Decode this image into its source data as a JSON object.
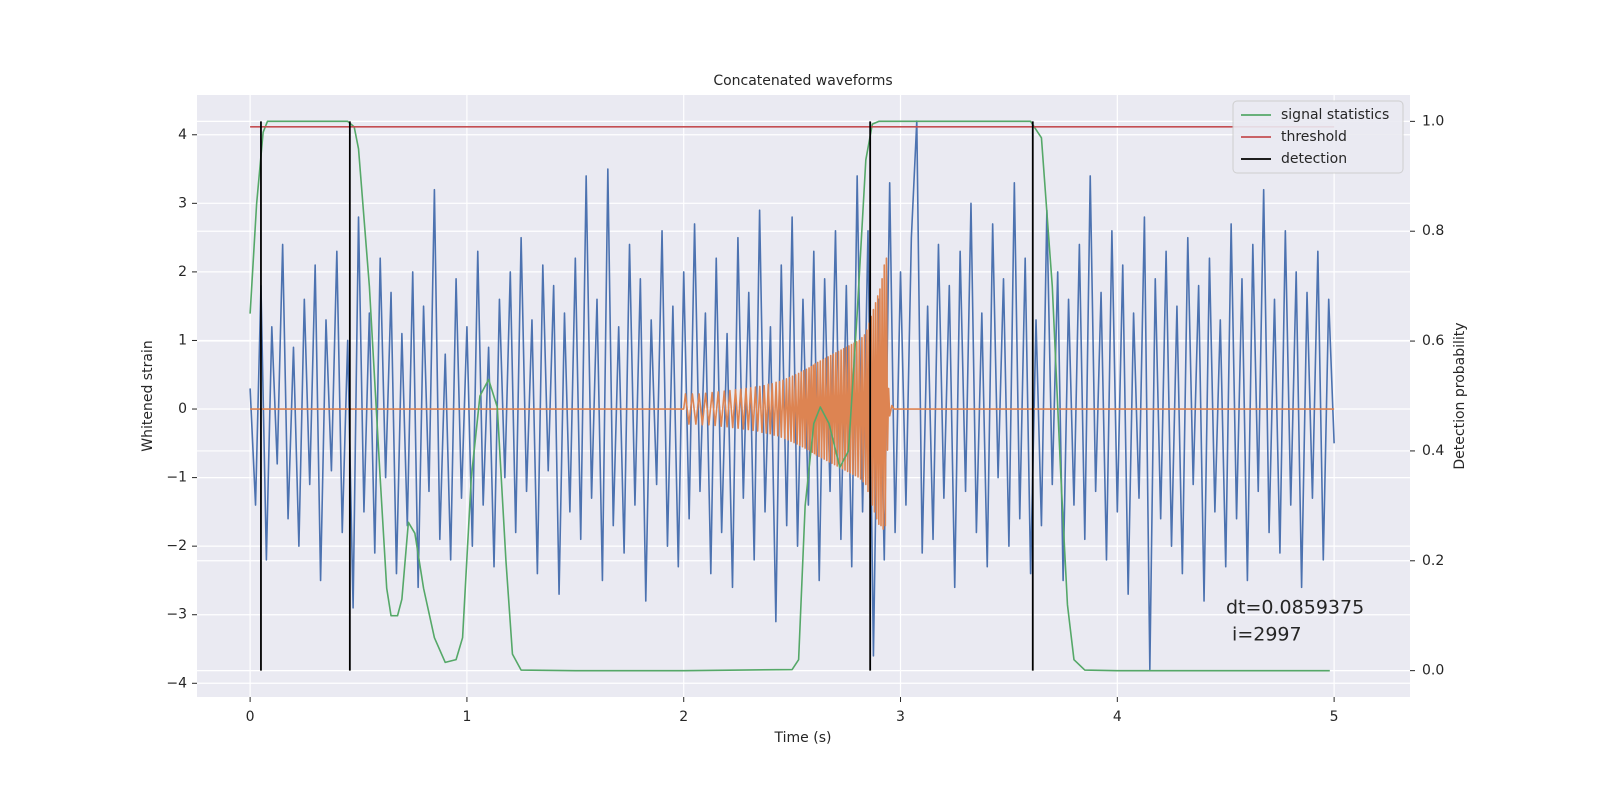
{
  "chart_data": {
    "type": "line",
    "title": "Concatenated waveforms",
    "xlabel": "Time (s)",
    "ylabel": "Whitened strain",
    "y2label": "Detection probability",
    "xlim": [
      -0.245,
      5.35
    ],
    "ylim": [
      -4.2,
      4.58
    ],
    "y2lim": [
      -0.048,
      1.048
    ],
    "xticks": [
      0,
      1,
      2,
      3,
      4,
      5
    ],
    "yticks": [
      {
        "value": -4,
        "label": "−4"
      },
      {
        "value": -3,
        "label": "−3"
      },
      {
        "value": -2,
        "label": "−2"
      },
      {
        "value": -1,
        "label": "−1"
      },
      0,
      1,
      2,
      3,
      4
    ],
    "y2ticks": [
      {
        "value": 0,
        "label": "0.0"
      },
      0.2,
      0.4,
      0.6,
      0.8,
      {
        "value": 1,
        "label": "1.0"
      }
    ],
    "grid": true,
    "legend": "upper right",
    "series": [
      {
        "color": "#4c72b0",
        "x": [
          0,
          0.025,
          0.05,
          0.075,
          0.1,
          0.125,
          0.15,
          0.175,
          0.2,
          0.225,
          0.25,
          0.275,
          0.3,
          0.325,
          0.35,
          0.375,
          0.4,
          0.425,
          0.45,
          0.475,
          0.5,
          0.525,
          0.55,
          0.575,
          0.6,
          0.625,
          0.65,
          0.675,
          0.7,
          0.725,
          0.75,
          0.775,
          0.8,
          0.825,
          0.85,
          0.875,
          0.9,
          0.925,
          0.95,
          0.975,
          1,
          1.025,
          1.05,
          1.075,
          1.1,
          1.125,
          1.15,
          1.175,
          1.2,
          1.225,
          1.25,
          1.275,
          1.3,
          1.325,
          1.35,
          1.375,
          1.4,
          1.425,
          1.45,
          1.475,
          1.5,
          1.525,
          1.55,
          1.575,
          1.6,
          1.625,
          1.65,
          1.675,
          1.7,
          1.725,
          1.75,
          1.775,
          1.8,
          1.825,
          1.85,
          1.875,
          1.9,
          1.925,
          1.95,
          1.975,
          2,
          2.025,
          2.05,
          2.075,
          2.1,
          2.125,
          2.15,
          2.175,
          2.2,
          2.225,
          2.25,
          2.275,
          2.3,
          2.325,
          2.35,
          2.375,
          2.4,
          2.425,
          2.45,
          2.475,
          2.5,
          2.525,
          2.55,
          2.575,
          2.6,
          2.625,
          2.65,
          2.675,
          2.7,
          2.725,
          2.75,
          2.775,
          2.8,
          2.825,
          2.85,
          2.875,
          2.9,
          2.925,
          2.95,
          2.975,
          3,
          3.025,
          3.05,
          3.075,
          3.1,
          3.125,
          3.15,
          3.175,
          3.2,
          3.225,
          3.25,
          3.275,
          3.3,
          3.325,
          3.35,
          3.375,
          3.4,
          3.425,
          3.45,
          3.475,
          3.5,
          3.525,
          3.55,
          3.575,
          3.6,
          3.625,
          3.65,
          3.675,
          3.7,
          3.725,
          3.75,
          3.775,
          3.8,
          3.825,
          3.85,
          3.875,
          3.9,
          3.925,
          3.95,
          3.975,
          4,
          4.025,
          4.05,
          4.075,
          4.1,
          4.125,
          4.15,
          4.175,
          4.2,
          4.225,
          4.25,
          4.275,
          4.3,
          4.325,
          4.35,
          4.375,
          4.4,
          4.425,
          4.45,
          4.475,
          4.5,
          4.525,
          4.55,
          4.575,
          4.6,
          4.625,
          4.65,
          4.675,
          4.7,
          4.725,
          4.75,
          4.775,
          4.8,
          4.825,
          4.85,
          4.875,
          4.9,
          4.925,
          4.95,
          4.975,
          5
        ],
        "values": [
          0.3,
          -1.4,
          1.8,
          -2.2,
          1.2,
          -0.8,
          2.4,
          -1.6,
          0.9,
          -2.0,
          1.6,
          -1.1,
          2.1,
          -2.5,
          1.3,
          -0.9,
          2.3,
          -1.8,
          1.0,
          -2.9,
          2.8,
          -1.5,
          1.4,
          -2.1,
          2.2,
          -1.0,
          1.7,
          -2.4,
          1.1,
          -1.7,
          2.0,
          -2.6,
          1.5,
          -1.2,
          3.2,
          -1.9,
          0.8,
          -2.2,
          1.9,
          -1.3,
          1.2,
          -2.0,
          2.3,
          -1.4,
          0.9,
          -2.3,
          1.6,
          -1.0,
          2.0,
          -1.8,
          2.5,
          -1.2,
          1.3,
          -2.4,
          2.1,
          -0.9,
          1.8,
          -2.7,
          1.4,
          -1.5,
          2.2,
          -1.9,
          3.4,
          -1.3,
          1.6,
          -2.5,
          3.5,
          -1.7,
          1.2,
          -2.1,
          2.4,
          -1.4,
          1.9,
          -2.8,
          1.3,
          -1.1,
          2.6,
          -2.0,
          1.5,
          -2.3,
          2.0,
          -1.6,
          2.7,
          -1.2,
          1.4,
          -2.4,
          2.2,
          -1.8,
          1.1,
          -2.6,
          2.5,
          -1.3,
          1.7,
          -2.2,
          2.9,
          -1.5,
          1.2,
          -3.1,
          2.1,
          -1.7,
          2.8,
          -2.0,
          1.6,
          -1.4,
          2.3,
          -2.5,
          1.9,
          -1.2,
          2.6,
          -1.9,
          1.8,
          -2.3,
          3.4,
          -1.5,
          2.6,
          -3.6,
          1.6,
          -2.2,
          3.3,
          -1.8,
          2.0,
          -1.4,
          2.5,
          4.2,
          -2.1,
          1.5,
          -1.9,
          2.4,
          -1.3,
          1.8,
          -2.6,
          2.3,
          -1.2,
          3.0,
          -1.8,
          1.4,
          -2.3,
          2.7,
          -1.0,
          1.9,
          -2.0,
          3.3,
          -1.6,
          2.2,
          -2.4,
          1.3,
          -1.7,
          2.9,
          -1.1,
          2.0,
          -2.5,
          1.6,
          -1.4,
          2.4,
          -1.9,
          3.4,
          -1.2,
          1.7,
          -2.2,
          2.6,
          -1.5,
          2.1,
          -2.7,
          1.4,
          -1.3,
          2.8,
          -3.8,
          1.9,
          -1.6,
          2.3,
          -2.0,
          1.5,
          -2.4,
          2.5,
          -1.1,
          1.8,
          -2.8,
          2.2,
          -1.5,
          1.3,
          -2.3,
          2.7,
          -1.6,
          1.9,
          -2.5,
          2.4,
          -1.2,
          3.2,
          -1.8,
          1.6,
          -2.1,
          2.6,
          -1.4,
          2.0,
          -2.6,
          1.7,
          -1.3,
          2.3,
          -2.2,
          1.6,
          -0.5
        ]
      },
      {
        "color": "#dd8452",
        "x": [
          0,
          2.0,
          2.008,
          2.024,
          2.04,
          2.056,
          2.071,
          2.086,
          2.101,
          2.116,
          2.131,
          2.145,
          2.159,
          2.173,
          2.187,
          2.2,
          2.213,
          2.226,
          2.239,
          2.251,
          2.263,
          2.275,
          2.287,
          2.298,
          2.309,
          2.32,
          2.331,
          2.341,
          2.351,
          2.361,
          2.371,
          2.381,
          2.39,
          2.399,
          2.408,
          2.417,
          2.426,
          2.434,
          2.442,
          2.45,
          2.458,
          2.466,
          2.474,
          2.481,
          2.488,
          2.495,
          2.502,
          2.509,
          2.516,
          2.523,
          2.53,
          2.536,
          2.542,
          2.548,
          2.554,
          2.56,
          2.566,
          2.572,
          2.578,
          2.583,
          2.588,
          2.593,
          2.598,
          2.603,
          2.606,
          2.612,
          2.618,
          2.624,
          2.63,
          2.636,
          2.642,
          2.648,
          2.654,
          2.66,
          2.666,
          2.672,
          2.678,
          2.684,
          2.69,
          2.696,
          2.702,
          2.708,
          2.714,
          2.72,
          2.726,
          2.732,
          2.738,
          2.744,
          2.75,
          2.756,
          2.762,
          2.768,
          2.774,
          2.78,
          2.786,
          2.792,
          2.798,
          2.804,
          2.81,
          2.816,
          2.822,
          2.828,
          2.834,
          2.84,
          2.845,
          2.85,
          2.855,
          2.86,
          2.865,
          2.87,
          2.875,
          2.88,
          2.885,
          2.89,
          2.895,
          2.9,
          2.905,
          2.91,
          2.915,
          2.92,
          2.925,
          2.93,
          2.935,
          2.94,
          2.945,
          2.95,
          2.96,
          2.97,
          5
        ],
        "values": [
          0,
          0,
          0.22,
          -0.22,
          0.22,
          -0.22,
          0.22,
          -0.23,
          0.23,
          -0.23,
          0.24,
          -0.24,
          0.25,
          -0.25,
          0.26,
          -0.26,
          0.27,
          -0.27,
          0.28,
          -0.28,
          0.29,
          -0.29,
          0.3,
          -0.3,
          0.31,
          -0.31,
          0.32,
          -0.32,
          0.33,
          -0.34,
          0.34,
          -0.35,
          0.36,
          -0.36,
          0.37,
          -0.38,
          0.39,
          -0.39,
          0.4,
          -0.41,
          0.42,
          -0.43,
          0.44,
          -0.45,
          0.46,
          -0.47,
          0.48,
          -0.49,
          0.5,
          -0.51,
          0.52,
          -0.53,
          0.54,
          -0.55,
          0.56,
          -0.57,
          0.58,
          -0.59,
          0.6,
          -0.61,
          0.62,
          -0.63,
          0.64,
          -0.65,
          0.66,
          -0.67,
          0.68,
          -0.69,
          0.7,
          -0.71,
          0.72,
          -0.73,
          0.74,
          -0.75,
          0.76,
          -0.77,
          0.78,
          -0.79,
          0.8,
          -0.81,
          0.82,
          -0.83,
          0.84,
          -0.85,
          0.86,
          -0.87,
          0.88,
          -0.89,
          0.9,
          -0.91,
          0.92,
          -0.93,
          0.94,
          -0.95,
          0.96,
          -0.97,
          0.98,
          -0.99,
          1.0,
          -1.02,
          1.04,
          -1.06,
          1.08,
          -1.1,
          1.15,
          -1.2,
          1.25,
          -1.3,
          1.35,
          -1.4,
          1.45,
          -1.5,
          1.55,
          -1.6,
          1.65,
          -1.68,
          1.75,
          -1.7,
          1.9,
          -1.75,
          2.1,
          -1.7,
          2.2,
          -0.6,
          0.3,
          -0.1,
          0.05,
          0,
          0
        ]
      },
      {
        "name": "signal statistics",
        "color": "#55a868",
        "axis": "y2",
        "x": [
          0,
          0.03,
          0.06,
          0.08,
          0.45,
          0.48,
          0.5,
          0.55,
          0.6,
          0.63,
          0.65,
          0.68,
          0.7,
          0.73,
          0.76,
          0.8,
          0.85,
          0.9,
          0.95,
          0.98,
          1.02,
          1.06,
          1.1,
          1.14,
          1.18,
          1.21,
          1.25,
          1.5,
          2.0,
          2.5,
          2.53,
          2.56,
          2.6,
          2.63,
          2.67,
          2.72,
          2.76,
          2.8,
          2.84,
          2.87,
          2.9,
          3.6,
          3.65,
          3.7,
          3.74,
          3.77,
          3.8,
          3.85,
          4.0,
          4.98
        ],
        "values": [
          0.65,
          0.85,
          0.98,
          1.0,
          1.0,
          0.99,
          0.95,
          0.7,
          0.35,
          0.15,
          0.1,
          0.1,
          0.13,
          0.27,
          0.25,
          0.15,
          0.06,
          0.015,
          0.02,
          0.06,
          0.35,
          0.5,
          0.53,
          0.48,
          0.2,
          0.03,
          0.001,
          0,
          0,
          0.002,
          0.02,
          0.3,
          0.45,
          0.48,
          0.45,
          0.37,
          0.4,
          0.65,
          0.93,
          0.995,
          1.0,
          1.0,
          0.97,
          0.7,
          0.35,
          0.12,
          0.02,
          0.001,
          0,
          0
        ]
      },
      {
        "name": "threshold",
        "color": "#c44e52",
        "axis": "y2",
        "x": [
          0,
          5
        ],
        "values": [
          0.99,
          0.99
        ]
      }
    ],
    "detection": {
      "name": "detection",
      "color": "#000000",
      "x": [
        0.05,
        0.46,
        2.86,
        3.61
      ],
      "range": [
        0,
        1
      ]
    },
    "annotation": [
      "dt=0.0859375",
      " i=2997"
    ]
  }
}
